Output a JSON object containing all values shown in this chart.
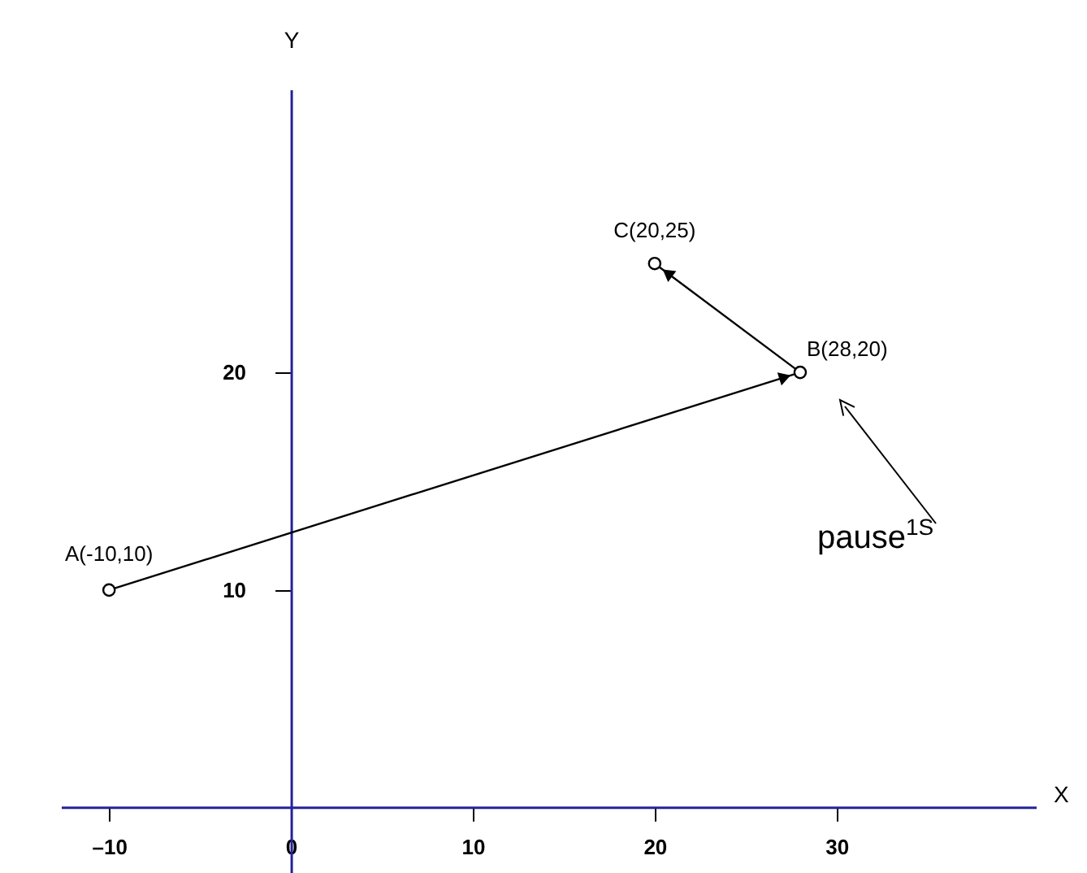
{
  "chart_data": {
    "type": "line",
    "xlabel": "X",
    "ylabel": "Y",
    "x": [
      -10,
      28,
      20
    ],
    "values": [
      10,
      20,
      25
    ],
    "marker": "circle",
    "grid": false,
    "xlim": [
      -12.6,
      41
    ],
    "ylim": [
      -3,
      33
    ],
    "xticks": [
      {
        "value": -10,
        "label": "–10"
      },
      0,
      10,
      20,
      30
    ],
    "yticks": [
      10,
      20
    ],
    "ref_lines": [
      {
        "axis": "y",
        "value": 0,
        "color": "#23239a"
      }
    ],
    "annotations": [
      {
        "text": "A(-10,10)",
        "x": -10,
        "y": 10
      },
      {
        "text": "B(28,20)",
        "x": 28,
        "y": 20
      },
      {
        "text": "C(20,25)",
        "x": 20,
        "y": 25
      },
      "pause$^{1S}$"
    ]
  }
}
